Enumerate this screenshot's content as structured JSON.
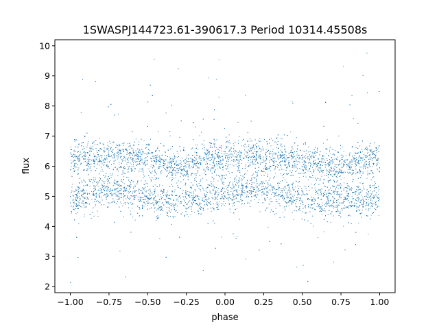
{
  "chart_data": {
    "type": "scatter",
    "title": "1SWASPJ144723.61-390617.3 Period 10314.45508s",
    "xlabel": "phase",
    "ylabel": "flux",
    "xlim": [
      -1.1,
      1.1
    ],
    "ylim": [
      1.8,
      10.2
    ],
    "xticks": [
      -1.0,
      -0.75,
      -0.5,
      -0.25,
      0.0,
      0.25,
      0.5,
      0.75,
      1.0
    ],
    "xtick_labels": [
      "−1.00",
      "−0.75",
      "−0.50",
      "−0.25",
      "0.00",
      "0.25",
      "0.50",
      "0.75",
      "1.00"
    ],
    "yticks": [
      2,
      3,
      4,
      5,
      6,
      7,
      8,
      9,
      10
    ],
    "ytick_labels": [
      "2",
      "3",
      "4",
      "5",
      "6",
      "7",
      "8",
      "9",
      "10"
    ],
    "grid": false,
    "marker_color": "#1f77b4",
    "series": [
      {
        "note_points": "dense phase-folded light curve; upper band ~6.3, lower band ~4.9",
        "x": [
          -1.0,
          -0.9,
          -0.8,
          -0.7,
          -0.6,
          -0.5,
          -0.4,
          -0.3,
          -0.2,
          -0.1,
          0.0,
          0.1,
          0.2,
          0.3,
          0.4,
          0.5,
          0.6,
          0.7,
          0.8,
          0.9,
          1.0
        ],
        "upper_band": [
          6.3,
          6.3,
          6.35,
          6.35,
          6.3,
          6.2,
          6.1,
          6.0,
          6.1,
          6.25,
          6.3,
          6.35,
          6.35,
          6.3,
          6.25,
          6.15,
          6.05,
          6.0,
          6.1,
          6.2,
          6.3
        ],
        "lower_band": [
          4.9,
          5.0,
          5.2,
          5.3,
          5.1,
          4.9,
          4.85,
          4.85,
          4.9,
          5.0,
          5.1,
          5.2,
          5.3,
          5.2,
          5.0,
          4.9,
          4.85,
          4.85,
          4.9,
          4.95,
          5.0
        ]
      }
    ]
  }
}
